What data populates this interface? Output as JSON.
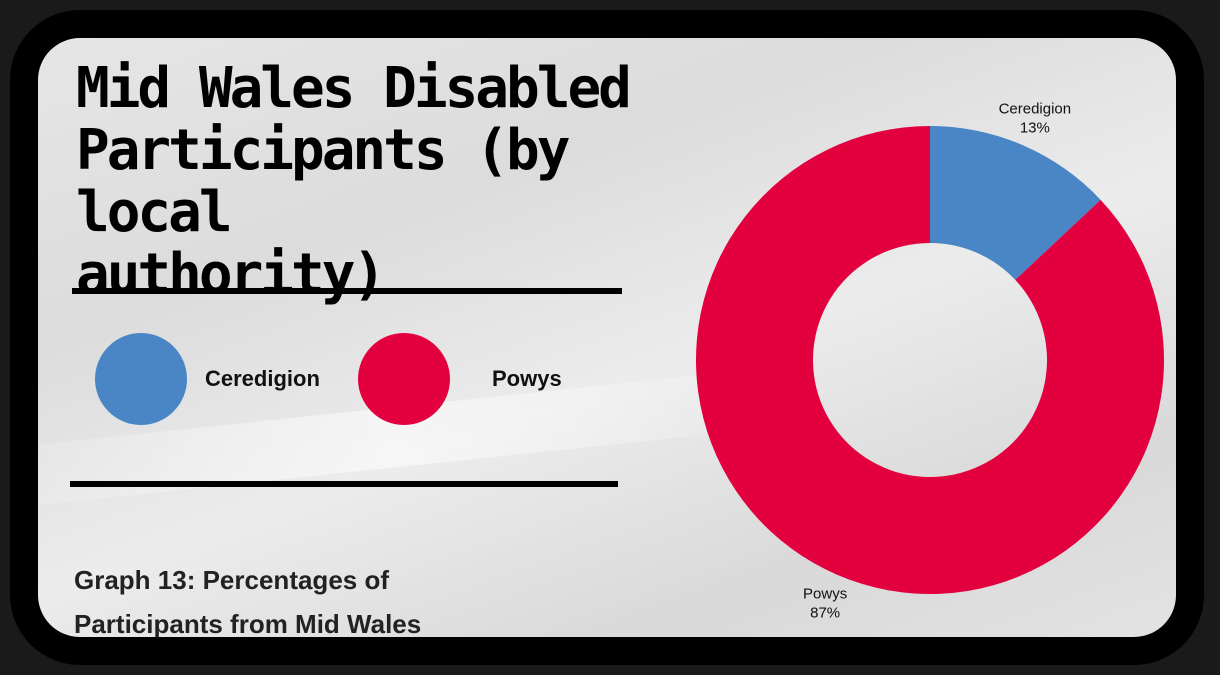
{
  "header": {
    "title_line1": "Mid Wales Disabled",
    "title_line2": "Participants (by local",
    "title_line3": "authority)"
  },
  "legend": [
    {
      "label": "Ceredigion",
      "color": "#4a86c6"
    },
    {
      "label": "Powys",
      "color": "#e3003f"
    }
  ],
  "caption": {
    "line1": "Graph 13: Percentages of",
    "line2": "Participants from Mid Wales"
  },
  "chart_data": {
    "type": "pie",
    "subtype": "donut",
    "categories": [
      "Ceredigion",
      "Powys"
    ],
    "values": [
      13,
      87
    ],
    "unit": "%",
    "data_labels": [
      "13%",
      "87%"
    ],
    "colors": [
      "#4a86c6",
      "#e3003f"
    ],
    "legend": "left",
    "title": "Mid Wales Disabled Participants (by local authority)"
  }
}
